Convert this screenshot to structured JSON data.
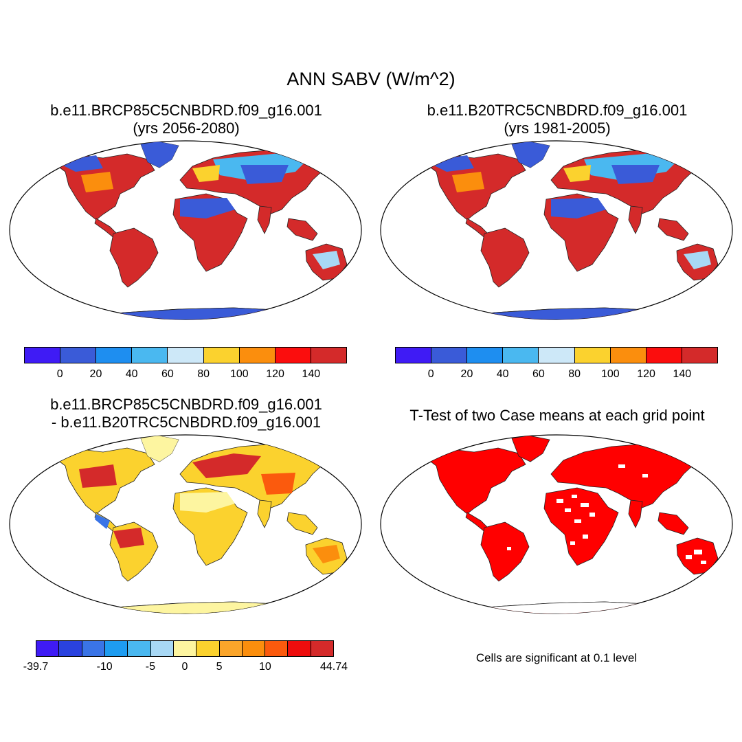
{
  "figure": {
    "main_title": "ANN SABV (W/m^2)"
  },
  "panels": [
    {
      "title_line1": "b.e11.BRCP85C5CNBDRD.f09_g16.001",
      "title_line2": "(yrs 2056-2080)",
      "variant": "abs"
    },
    {
      "title_line1": "b.e11.B20TRC5CNBDRD.f09_g16.001",
      "title_line2": "(yrs 1981-2005)",
      "variant": "abs"
    },
    {
      "title_line1": "b.e11.BRCP85C5CNBDRD.f09_g16.001",
      "title_line2": "- b.e11.B20TRC5CNBDRD.f09_g16.001",
      "variant": "diff"
    },
    {
      "title_line1": "T-Test of two Case means at each grid point",
      "title_line2": "",
      "variant": "ttest",
      "note": "Cells are significant at 0.1 level"
    }
  ],
  "colorbars": {
    "absolute": {
      "colors": [
        "#3f1bf5",
        "#3a5bd8",
        "#1e8ef0",
        "#4ab8f0",
        "#cde8f8",
        "#fbd22e",
        "#fb8e0d",
        "#fb0d0d",
        "#d42a2a"
      ],
      "labels": [
        "0",
        "20",
        "40",
        "60",
        "80",
        "100",
        "120",
        "140"
      ]
    },
    "difference": {
      "colors": [
        "#3f1bf5",
        "#2a42df",
        "#3a74e6",
        "#1e9cf0",
        "#4ab8f0",
        "#a8d8f5",
        "#fdf5a0",
        "#fbd22e",
        "#fba52a",
        "#fb8e0d",
        "#fb5a0d",
        "#ee0d0d",
        "#d42a2a"
      ],
      "labels": [
        "-39.7",
        "-10",
        "-5",
        "0",
        "5",
        "10",
        "44.74"
      ]
    }
  },
  "legend_colors": {
    "ttest_significant": "#ff0000",
    "antarctica_abs": "#3a5bd8",
    "antarctica_diff": "#fdf5a0"
  }
}
